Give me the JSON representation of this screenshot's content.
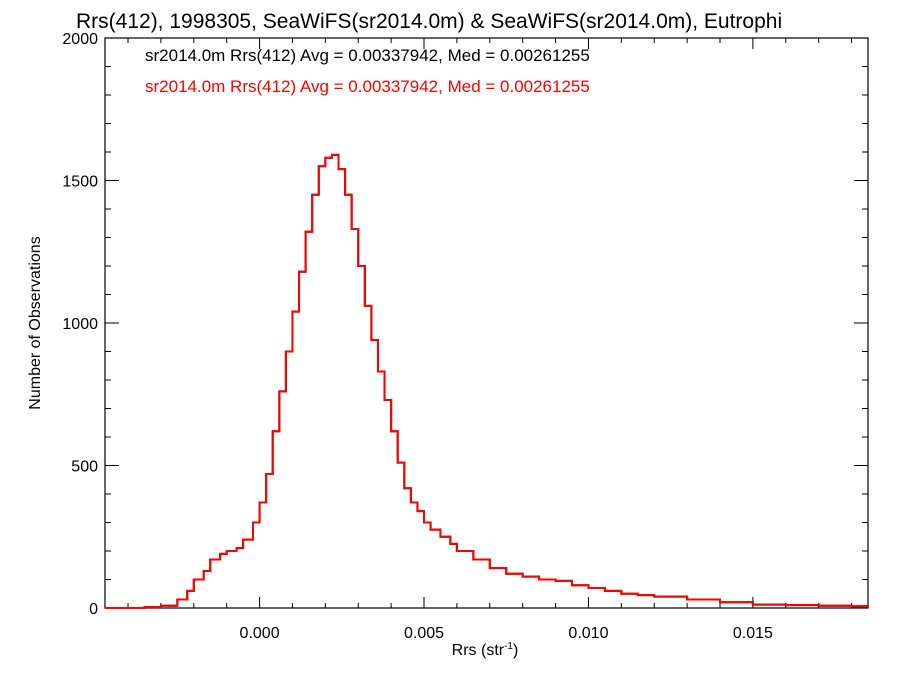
{
  "chart_data": {
    "type": "histogram",
    "title": "Rrs(412), 1998305, SeaWiFS(sr2014.0m) & SeaWiFS(sr2014.0m), Eutrophi",
    "xlabel": "Rrs (str",
    "xlabel_sup": "-1",
    "xlabel_close": ")",
    "ylabel": "Number of Observations",
    "xlim": [
      -0.0047,
      0.0185
    ],
    "ylim": [
      0,
      2000
    ],
    "xticks": [
      0.0,
      0.005,
      0.01,
      0.015
    ],
    "xtick_labels": [
      "0.000",
      "0.005",
      "0.010",
      "0.015"
    ],
    "yticks": [
      0,
      500,
      1000,
      1500,
      2000
    ],
    "ytick_labels": [
      "0",
      "500",
      "1000",
      "1500",
      "2000"
    ],
    "grid": false,
    "annotations": [
      {
        "text": "sr2014.0m Rrs(412) Avg = 0.00337942, Med = 0.00261255",
        "color": "#000000"
      },
      {
        "text": "sr2014.0m Rrs(412) Avg = 0.00337942, Med = 0.00261255",
        "color": "#ff0000"
      }
    ],
    "series": [
      {
        "color": "#000000",
        "x": [
          -0.0047,
          -0.004,
          -0.0035,
          -0.003,
          -0.0025,
          -0.0022,
          -0.002,
          -0.0017,
          -0.0015,
          -0.0012,
          -0.001,
          -0.0007,
          -0.0005,
          -0.0002,
          0.0,
          0.0002,
          0.0004,
          0.0006,
          0.0008,
          0.001,
          0.0012,
          0.0014,
          0.0016,
          0.0018,
          0.002,
          0.0022,
          0.0024,
          0.0026,
          0.0028,
          0.003,
          0.0032,
          0.0034,
          0.0036,
          0.0038,
          0.004,
          0.0042,
          0.0044,
          0.0046,
          0.0048,
          0.005,
          0.0052,
          0.0055,
          0.0058,
          0.006,
          0.0065,
          0.007,
          0.0075,
          0.008,
          0.0085,
          0.009,
          0.0095,
          0.01,
          0.0105,
          0.011,
          0.0115,
          0.012,
          0.013,
          0.014,
          0.015,
          0.016,
          0.017,
          0.018,
          0.0185
        ],
        "y": [
          0,
          0,
          3,
          8,
          30,
          60,
          100,
          130,
          170,
          190,
          200,
          210,
          240,
          300,
          370,
          470,
          620,
          760,
          900,
          1040,
          1180,
          1320,
          1450,
          1550,
          1580,
          1590,
          1540,
          1450,
          1330,
          1200,
          1060,
          940,
          830,
          730,
          620,
          510,
          420,
          370,
          340,
          300,
          275,
          250,
          225,
          200,
          170,
          140,
          120,
          110,
          100,
          95,
          80,
          70,
          60,
          50,
          45,
          40,
          30,
          20,
          12,
          10,
          8,
          6,
          5
        ]
      },
      {
        "color": "#ff0000",
        "x": [
          -0.0047,
          -0.004,
          -0.0035,
          -0.003,
          -0.0025,
          -0.0022,
          -0.002,
          -0.0017,
          -0.0015,
          -0.0012,
          -0.001,
          -0.0007,
          -0.0005,
          -0.0002,
          0.0,
          0.0002,
          0.0004,
          0.0006,
          0.0008,
          0.001,
          0.0012,
          0.0014,
          0.0016,
          0.0018,
          0.002,
          0.0022,
          0.0024,
          0.0026,
          0.0028,
          0.003,
          0.0032,
          0.0034,
          0.0036,
          0.0038,
          0.004,
          0.0042,
          0.0044,
          0.0046,
          0.0048,
          0.005,
          0.0052,
          0.0055,
          0.0058,
          0.006,
          0.0065,
          0.007,
          0.0075,
          0.008,
          0.0085,
          0.009,
          0.0095,
          0.01,
          0.0105,
          0.011,
          0.0115,
          0.012,
          0.013,
          0.014,
          0.015,
          0.016,
          0.017,
          0.018,
          0.0185
        ],
        "y": [
          0,
          0,
          3,
          8,
          30,
          60,
          100,
          130,
          170,
          190,
          200,
          210,
          240,
          300,
          370,
          470,
          620,
          760,
          900,
          1040,
          1180,
          1320,
          1450,
          1550,
          1580,
          1590,
          1540,
          1450,
          1330,
          1200,
          1060,
          940,
          830,
          730,
          620,
          510,
          420,
          370,
          340,
          300,
          275,
          250,
          225,
          200,
          170,
          140,
          120,
          110,
          100,
          95,
          80,
          70,
          60,
          50,
          45,
          40,
          30,
          20,
          12,
          10,
          8,
          6,
          5
        ]
      }
    ]
  }
}
